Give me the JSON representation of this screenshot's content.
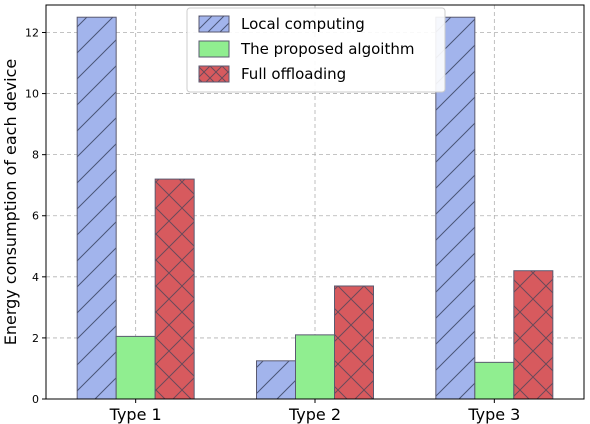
{
  "chart_data": {
    "type": "bar",
    "categories": [
      "Type 1",
      "Type 2",
      "Type 3"
    ],
    "series": [
      {
        "name": "Local computing",
        "values": [
          12.5,
          1.25,
          12.5
        ],
        "color": "#a2b4ec",
        "hatch": "diagonal"
      },
      {
        "name": "The proposed algoithm",
        "values": [
          2.05,
          2.1,
          1.2
        ],
        "color": "#90ee90",
        "hatch": "none"
      },
      {
        "name": "Full offloading",
        "values": [
          7.2,
          3.7,
          4.2
        ],
        "color": "#d75a5e",
        "hatch": "crosshatch"
      }
    ],
    "xlabel": "",
    "ylabel": "Energy consumption of each device",
    "ylim": [
      0,
      12.9
    ],
    "yticks": [
      0,
      2,
      4,
      6,
      8,
      10,
      12
    ],
    "grid": true,
    "legend_position": "top-center"
  }
}
